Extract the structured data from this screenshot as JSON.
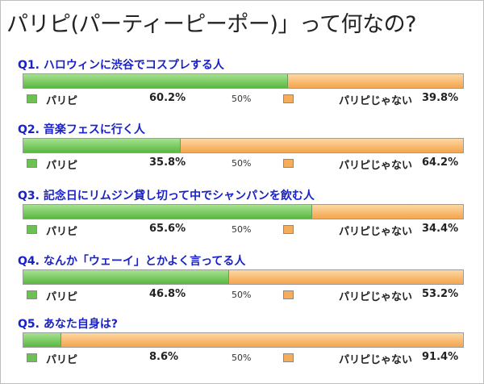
{
  "title": "パリピ(パーティーピーポー)」って何なの?",
  "legend": {
    "yes": "パリピ",
    "no": "パリピじゃない",
    "mid": "50%"
  },
  "chart_data": {
    "type": "bar",
    "stacked": true,
    "orientation": "horizontal",
    "categories": [
      "Q1. ハロウィンに渋谷でコスプレする人",
      "Q2. 音楽フェスに行く人",
      "Q3. 記念日にリムジン貸し切って中でシャンパンを飲む人",
      "Q4. なんか「ウェーイ」とかよく言ってる人",
      "Q5. あなた自身は?"
    ],
    "series": [
      {
        "name": "パリピ",
        "values": [
          60.2,
          35.8,
          65.6,
          46.8,
          8.6
        ],
        "labels": [
          "60.2%",
          "35.8%",
          "65.6%",
          "46.8%",
          "8.6%"
        ],
        "color": "#6cc152"
      },
      {
        "name": "パリピじゃない",
        "values": [
          39.8,
          64.2,
          34.4,
          53.2,
          91.4
        ],
        "labels": [
          "39.8%",
          "64.2%",
          "34.4%",
          "53.2%",
          "91.4%"
        ],
        "color": "#f6ad5a"
      }
    ],
    "xlim": [
      0,
      100
    ]
  }
}
